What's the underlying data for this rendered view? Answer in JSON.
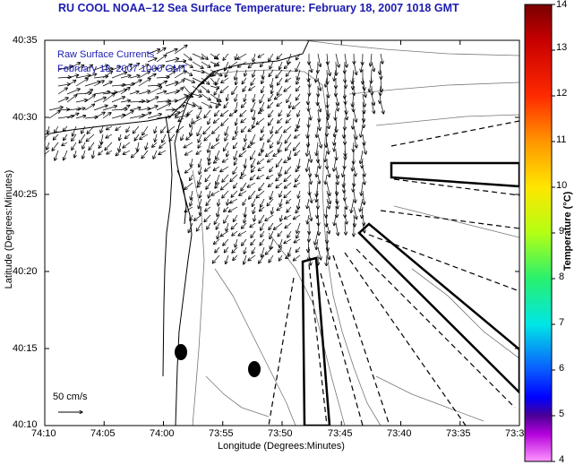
{
  "title": "RU COOL  NOAA–12  Sea Surface Temperature:  February 18, 2007 1018 GMT",
  "overlay": {
    "line1": "Raw Surface Currents",
    "line2": "February 18, 2007 1000 GMT"
  },
  "axes": {
    "xlabel": "Longitude (Degrees:Minutes)",
    "ylabel": "Latitude (Degrees:Minutes)",
    "xticks": [
      "74:10",
      "74:05",
      "74:00",
      "73:55",
      "73:50",
      "73:45",
      "73:40",
      "73:35",
      "73:3"
    ],
    "yticks": [
      "40:35",
      "40:30",
      "40:25",
      "40:20",
      "40:15",
      "40:10"
    ]
  },
  "colorbar": {
    "label": "Temperature (°C)",
    "ticks": [
      "14",
      "13",
      "12",
      "11",
      "10",
      "9",
      "8",
      "7",
      "6",
      "5",
      "4"
    ],
    "min": 4,
    "max": 14
  },
  "scale": {
    "label": "50 cm/s"
  }
}
